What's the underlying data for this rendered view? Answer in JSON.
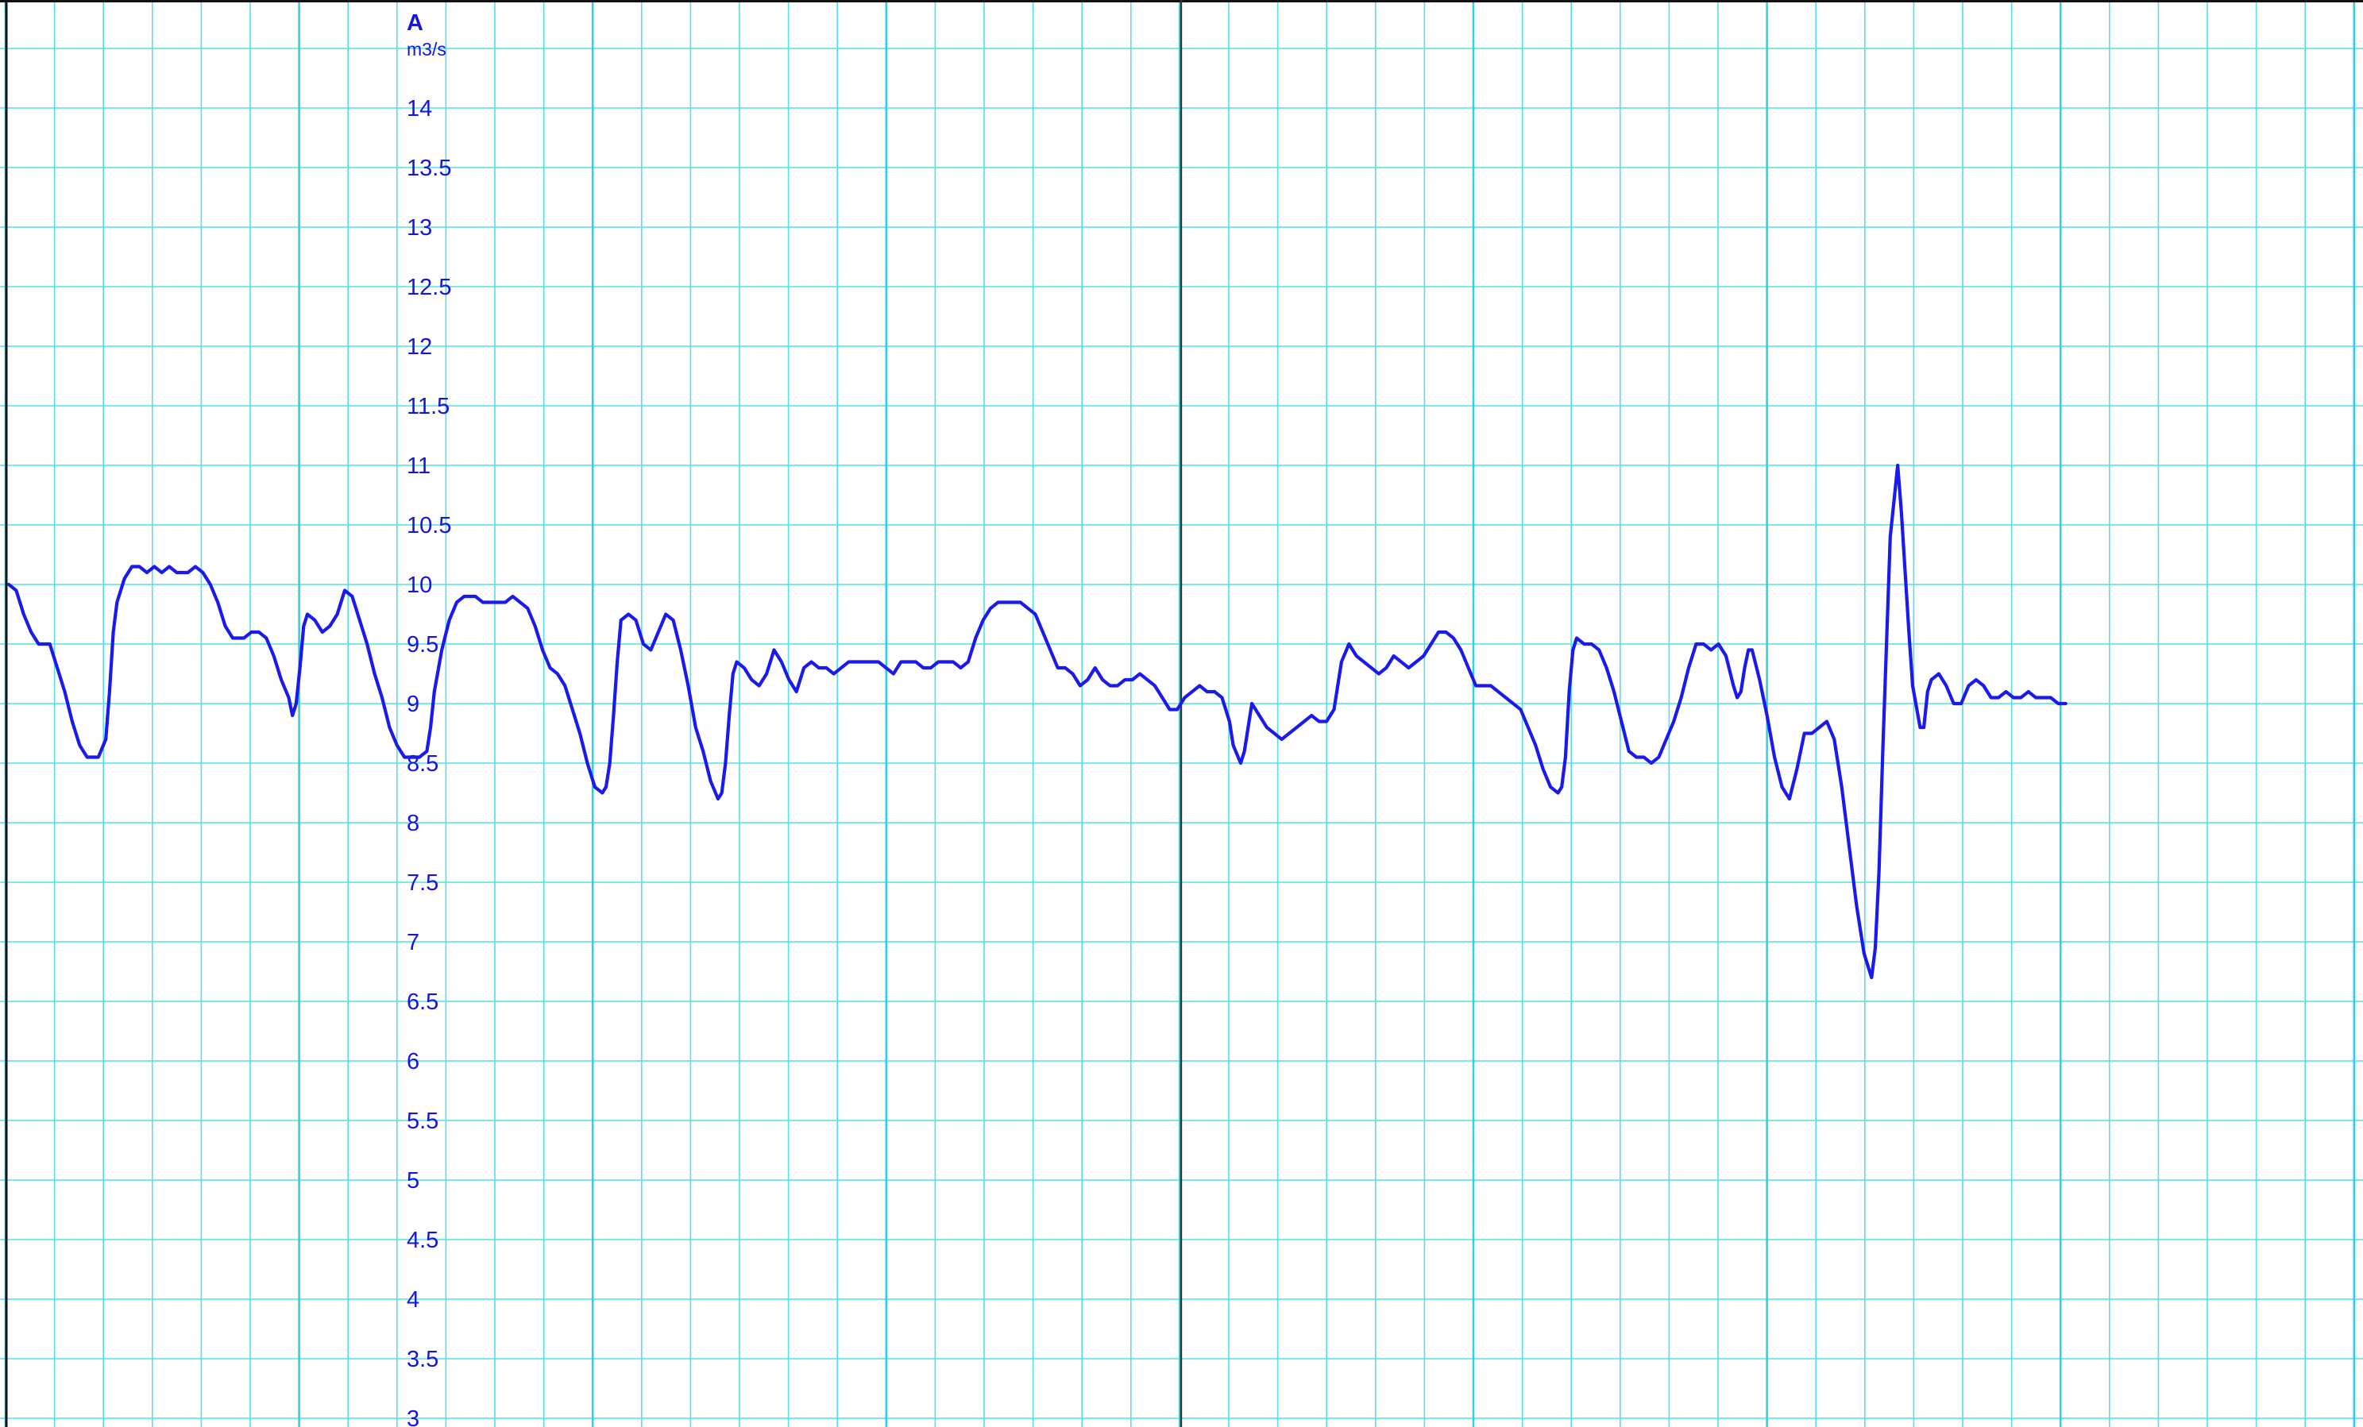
{
  "chart_data": {
    "type": "line",
    "title": "",
    "xlabel": "",
    "ylabel": "A",
    "yunit": "m3/s",
    "ylim": [
      3,
      14.8
    ],
    "y_ticks": [
      "14",
      "13.5",
      "13",
      "12.5",
      "12",
      "11.5",
      "11",
      "10.5",
      "10",
      "9.5",
      "9",
      "8.5",
      "8",
      "7.5",
      "7",
      "6.5",
      "6",
      "5.5",
      "5",
      "4.5",
      "4",
      "3.5",
      "3"
    ],
    "grid": true,
    "legend": "none",
    "colors": {
      "line": "#1a1aee",
      "grid_minor": "#55e0e8",
      "grid_major": "#2cd4e0",
      "cursor": "#333333",
      "text": "#1515dd"
    },
    "series": [
      {
        "values": [
          [
            0,
            10.0
          ],
          [
            2,
            9.95
          ],
          [
            4,
            9.75
          ],
          [
            6,
            9.6
          ],
          [
            8,
            9.5
          ],
          [
            11,
            9.5
          ],
          [
            13,
            9.3
          ],
          [
            15,
            9.1
          ],
          [
            17,
            8.85
          ],
          [
            19,
            8.65
          ],
          [
            21,
            8.55
          ],
          [
            24,
            8.55
          ],
          [
            26,
            8.7
          ],
          [
            27,
            9.1
          ],
          [
            28,
            9.6
          ],
          [
            29,
            9.85
          ],
          [
            31,
            10.05
          ],
          [
            33,
            10.15
          ],
          [
            35,
            10.15
          ],
          [
            37,
            10.1
          ],
          [
            39,
            10.15
          ],
          [
            41,
            10.1
          ],
          [
            43,
            10.15
          ],
          [
            45,
            10.1
          ],
          [
            48,
            10.1
          ],
          [
            50,
            10.15
          ],
          [
            52,
            10.1
          ],
          [
            54,
            10.0
          ],
          [
            56,
            9.85
          ],
          [
            58,
            9.65
          ],
          [
            60,
            9.55
          ],
          [
            63,
            9.55
          ],
          [
            65,
            9.6
          ],
          [
            67,
            9.6
          ],
          [
            69,
            9.55
          ],
          [
            71,
            9.4
          ],
          [
            73,
            9.2
          ],
          [
            75,
            9.05
          ],
          [
            76,
            8.9
          ],
          [
            77,
            9.0
          ],
          [
            78,
            9.3
          ],
          [
            79,
            9.65
          ],
          [
            80,
            9.75
          ],
          [
            82,
            9.7
          ],
          [
            84,
            9.6
          ],
          [
            86,
            9.65
          ],
          [
            88,
            9.75
          ],
          [
            90,
            9.95
          ],
          [
            92,
            9.9
          ],
          [
            94,
            9.7
          ],
          [
            96,
            9.5
          ],
          [
            98,
            9.25
          ],
          [
            100,
            9.05
          ],
          [
            102,
            8.8
          ],
          [
            104,
            8.65
          ],
          [
            106,
            8.55
          ],
          [
            108,
            8.55
          ],
          [
            110,
            8.55
          ],
          [
            112,
            8.6
          ],
          [
            113,
            8.8
          ],
          [
            114,
            9.1
          ],
          [
            116,
            9.45
          ],
          [
            118,
            9.7
          ],
          [
            120,
            9.85
          ],
          [
            122,
            9.9
          ],
          [
            125,
            9.9
          ],
          [
            127,
            9.85
          ],
          [
            131,
            9.85
          ],
          [
            133,
            9.85
          ],
          [
            135,
            9.9
          ],
          [
            137,
            9.85
          ],
          [
            139,
            9.8
          ],
          [
            141,
            9.65
          ],
          [
            143,
            9.45
          ],
          [
            145,
            9.3
          ],
          [
            147,
            9.25
          ],
          [
            149,
            9.15
          ],
          [
            151,
            8.95
          ],
          [
            153,
            8.75
          ],
          [
            155,
            8.5
          ],
          [
            157,
            8.3
          ],
          [
            159,
            8.25
          ],
          [
            160,
            8.3
          ],
          [
            161,
            8.5
          ],
          [
            162,
            8.9
          ],
          [
            163,
            9.35
          ],
          [
            164,
            9.7
          ],
          [
            166,
            9.75
          ],
          [
            168,
            9.7
          ],
          [
            170,
            9.5
          ],
          [
            172,
            9.45
          ],
          [
            174,
            9.6
          ],
          [
            176,
            9.75
          ],
          [
            178,
            9.7
          ],
          [
            180,
            9.45
          ],
          [
            182,
            9.15
          ],
          [
            184,
            8.8
          ],
          [
            186,
            8.6
          ],
          [
            188,
            8.35
          ],
          [
            190,
            8.2
          ],
          [
            191,
            8.25
          ],
          [
            192,
            8.5
          ],
          [
            193,
            8.9
          ],
          [
            194,
            9.25
          ],
          [
            195,
            9.35
          ],
          [
            197,
            9.3
          ],
          [
            199,
            9.2
          ],
          [
            201,
            9.15
          ],
          [
            203,
            9.25
          ],
          [
            205,
            9.45
          ],
          [
            207,
            9.35
          ],
          [
            209,
            9.2
          ],
          [
            211,
            9.1
          ],
          [
            213,
            9.3
          ],
          [
            215,
            9.35
          ],
          [
            217,
            9.3
          ],
          [
            219,
            9.3
          ],
          [
            221,
            9.25
          ],
          [
            223,
            9.3
          ],
          [
            225,
            9.35
          ],
          [
            233,
            9.35
          ],
          [
            235,
            9.3
          ],
          [
            237,
            9.25
          ],
          [
            239,
            9.35
          ],
          [
            243,
            9.35
          ],
          [
            245,
            9.3
          ],
          [
            247,
            9.3
          ],
          [
            249,
            9.35
          ],
          [
            251,
            9.35
          ],
          [
            253,
            9.35
          ],
          [
            255,
            9.3
          ],
          [
            257,
            9.35
          ],
          [
            259,
            9.55
          ],
          [
            261,
            9.7
          ],
          [
            263,
            9.8
          ],
          [
            265,
            9.85
          ],
          [
            271,
            9.85
          ],
          [
            273,
            9.8
          ],
          [
            275,
            9.75
          ],
          [
            277,
            9.6
          ],
          [
            279,
            9.45
          ],
          [
            281,
            9.3
          ],
          [
            283,
            9.3
          ],
          [
            285,
            9.25
          ],
          [
            287,
            9.15
          ],
          [
            289,
            9.2
          ],
          [
            291,
            9.3
          ],
          [
            293,
            9.2
          ],
          [
            295,
            9.15
          ],
          [
            297,
            9.15
          ],
          [
            299,
            9.2
          ],
          [
            301,
            9.2
          ],
          [
            303,
            9.25
          ],
          [
            305,
            9.2
          ],
          [
            307,
            9.15
          ],
          [
            309,
            9.05
          ],
          [
            311,
            8.95
          ],
          [
            313,
            8.95
          ],
          [
            315,
            9.05
          ],
          [
            317,
            9.1
          ],
          [
            319,
            9.15
          ],
          [
            321,
            9.1
          ],
          [
            323,
            9.1
          ],
          [
            325,
            9.05
          ],
          [
            327,
            8.85
          ],
          [
            328,
            8.65
          ],
          [
            330,
            8.5
          ],
          [
            331,
            8.6
          ],
          [
            332,
            8.8
          ],
          [
            333,
            9.0
          ],
          [
            335,
            8.9
          ],
          [
            337,
            8.8
          ],
          [
            339,
            8.75
          ],
          [
            341,
            8.7
          ],
          [
            343,
            8.75
          ],
          [
            345,
            8.8
          ],
          [
            347,
            8.85
          ],
          [
            349,
            8.9
          ],
          [
            351,
            8.85
          ],
          [
            353,
            8.85
          ],
          [
            355,
            8.95
          ],
          [
            356,
            9.15
          ],
          [
            357,
            9.35
          ],
          [
            359,
            9.5
          ],
          [
            361,
            9.4
          ],
          [
            363,
            9.35
          ],
          [
            365,
            9.3
          ],
          [
            367,
            9.25
          ],
          [
            369,
            9.3
          ],
          [
            371,
            9.4
          ],
          [
            373,
            9.35
          ],
          [
            375,
            9.3
          ],
          [
            377,
            9.35
          ],
          [
            379,
            9.4
          ],
          [
            381,
            9.5
          ],
          [
            383,
            9.6
          ],
          [
            385,
            9.6
          ],
          [
            387,
            9.55
          ],
          [
            389,
            9.45
          ],
          [
            391,
            9.3
          ],
          [
            393,
            9.15
          ],
          [
            395,
            9.15
          ],
          [
            397,
            9.15
          ],
          [
            399,
            9.1
          ],
          [
            401,
            9.05
          ],
          [
            403,
            9.0
          ],
          [
            405,
            8.95
          ],
          [
            407,
            8.8
          ],
          [
            409,
            8.65
          ],
          [
            411,
            8.45
          ],
          [
            413,
            8.3
          ],
          [
            415,
            8.25
          ],
          [
            416,
            8.3
          ],
          [
            417,
            8.55
          ],
          [
            418,
            9.1
          ],
          [
            419,
            9.45
          ],
          [
            420,
            9.55
          ],
          [
            422,
            9.5
          ],
          [
            424,
            9.5
          ],
          [
            426,
            9.45
          ],
          [
            428,
            9.3
          ],
          [
            430,
            9.1
          ],
          [
            432,
            8.85
          ],
          [
            434,
            8.6
          ],
          [
            436,
            8.55
          ],
          [
            438,
            8.55
          ],
          [
            440,
            8.5
          ],
          [
            442,
            8.55
          ],
          [
            444,
            8.7
          ],
          [
            446,
            8.85
          ],
          [
            448,
            9.05
          ],
          [
            450,
            9.3
          ],
          [
            452,
            9.5
          ],
          [
            454,
            9.5
          ],
          [
            456,
            9.45
          ],
          [
            458,
            9.5
          ],
          [
            460,
            9.4
          ],
          [
            462,
            9.15
          ],
          [
            463,
            9.05
          ],
          [
            464,
            9.1
          ],
          [
            465,
            9.3
          ],
          [
            466,
            9.45
          ],
          [
            467,
            9.45
          ],
          [
            469,
            9.2
          ],
          [
            471,
            8.9
          ],
          [
            473,
            8.55
          ],
          [
            475,
            8.3
          ],
          [
            477,
            8.2
          ],
          [
            479,
            8.45
          ],
          [
            481,
            8.75
          ],
          [
            483,
            8.75
          ],
          [
            485,
            8.8
          ],
          [
            487,
            8.85
          ],
          [
            489,
            8.7
          ],
          [
            491,
            8.3
          ],
          [
            493,
            7.8
          ],
          [
            495,
            7.3
          ],
          [
            497,
            6.9
          ],
          [
            499,
            6.7
          ],
          [
            500,
            6.95
          ],
          [
            501,
            7.6
          ],
          [
            502,
            8.6
          ],
          [
            503,
            9.5
          ],
          [
            504,
            10.4
          ],
          [
            506,
            11.0
          ],
          [
            507,
            10.6
          ],
          [
            508,
            10.1
          ],
          [
            509,
            9.6
          ],
          [
            510,
            9.15
          ],
          [
            512,
            8.8
          ],
          [
            513,
            8.8
          ],
          [
            514,
            9.1
          ],
          [
            515,
            9.2
          ],
          [
            517,
            9.25
          ],
          [
            519,
            9.15
          ],
          [
            521,
            9.0
          ],
          [
            523,
            9.0
          ],
          [
            525,
            9.15
          ],
          [
            527,
            9.2
          ],
          [
            529,
            9.15
          ],
          [
            531,
            9.05
          ],
          [
            533,
            9.05
          ],
          [
            535,
            9.1
          ],
          [
            537,
            9.05
          ],
          [
            539,
            9.05
          ],
          [
            541,
            9.1
          ],
          [
            543,
            9.05
          ],
          [
            545,
            9.05
          ],
          [
            547,
            9.05
          ],
          [
            549,
            9.0
          ],
          [
            551,
            9.0
          ]
        ]
      }
    ]
  }
}
